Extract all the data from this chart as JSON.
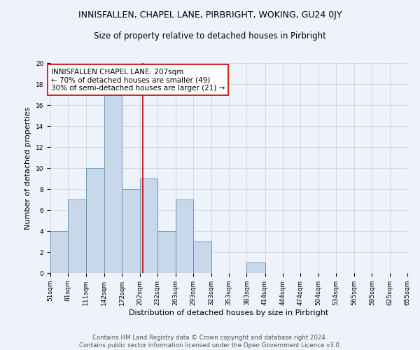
{
  "title": "INNISFALLEN, CHAPEL LANE, PIRBRIGHT, WOKING, GU24 0JY",
  "subtitle": "Size of property relative to detached houses in Pirbright",
  "xlabel": "Distribution of detached houses by size in Pirbright",
  "ylabel": "Number of detached properties",
  "bin_edges": [
    51,
    81,
    111,
    142,
    172,
    202,
    232,
    263,
    293,
    323,
    353,
    383,
    414,
    444,
    474,
    504,
    534,
    565,
    595,
    625,
    655
  ],
  "bin_labels": [
    "51sqm",
    "81sqm",
    "111sqm",
    "142sqm",
    "172sqm",
    "202sqm",
    "232sqm",
    "263sqm",
    "293sqm",
    "323sqm",
    "353sqm",
    "383sqm",
    "414sqm",
    "444sqm",
    "474sqm",
    "504sqm",
    "534sqm",
    "565sqm",
    "595sqm",
    "625sqm",
    "655sqm"
  ],
  "counts": [
    4,
    7,
    10,
    17,
    8,
    9,
    4,
    7,
    3,
    0,
    0,
    1,
    0,
    0,
    0,
    0,
    0,
    0,
    0,
    0
  ],
  "bar_facecolor": "#c8d8ea",
  "bar_edgecolor": "#6699bb",
  "vline_x": 207,
  "vline_color": "#cc0000",
  "annotation_text": "INNISFALLEN CHAPEL LANE: 207sqm\n← 70% of detached houses are smaller (49)\n30% of semi-detached houses are larger (21) →",
  "annotation_box_edgecolor": "#cc0000",
  "annotation_box_facecolor": "#ffffff",
  "ylim": [
    0,
    20
  ],
  "yticks": [
    0,
    2,
    4,
    6,
    8,
    10,
    12,
    14,
    16,
    18,
    20
  ],
  "grid_color": "#c0ccdd",
  "background_color": "#eef2fb",
  "footer_text": "Contains HM Land Registry data © Crown copyright and database right 2024.\nContains public sector information licensed under the Open Government Licence v3.0.",
  "title_fontsize": 9,
  "subtitle_fontsize": 8.5,
  "axis_label_fontsize": 8,
  "tick_fontsize": 6.5,
  "annotation_fontsize": 7.5,
  "footer_fontsize": 6.2
}
